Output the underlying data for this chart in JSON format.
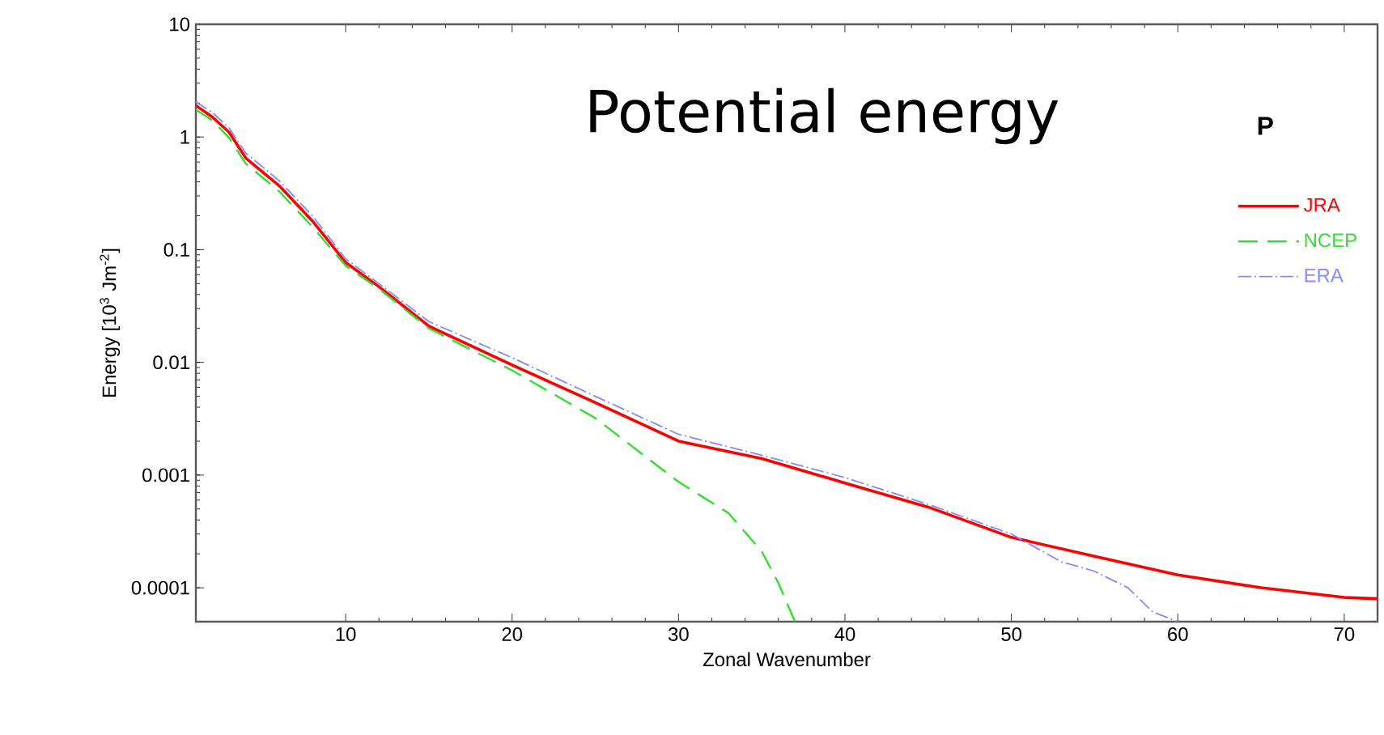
{
  "chart_data": {
    "type": "line",
    "title": "Potential energy",
    "xlabel": "Zonal Wavenumber",
    "ylabel": "Energy [10$^{3}$ Jm$^{-2}$]",
    "annotations": [
      "P"
    ],
    "xlim": [
      1,
      72
    ],
    "ylim": [
      5e-05,
      10
    ],
    "xticks": [
      10,
      20,
      30,
      40,
      50,
      60,
      70
    ],
    "yticks": [
      0.0001,
      0.001,
      0.01,
      0.1,
      1,
      10
    ],
    "log": "y",
    "grid": false,
    "legend": "right",
    "series": [
      {
        "name": "JRA",
        "color": "#ff0000",
        "line_style": "solid",
        "x": [
          1,
          2,
          3,
          4,
          6,
          8,
          10,
          12,
          15,
          20,
          25,
          30,
          35,
          40,
          45,
          50,
          55,
          60,
          65,
          70,
          72
        ],
        "values": [
          1.9,
          1.5,
          1.1,
          0.65,
          0.37,
          0.18,
          0.077,
          0.047,
          0.021,
          0.0095,
          0.0044,
          0.002,
          0.0014,
          0.00085,
          0.00052,
          0.00028,
          0.00019,
          0.00013,
          0.0001,
          8.2e-05,
          8e-05
        ]
      },
      {
        "name": "NCEP",
        "color": "#33dd33",
        "line_style": "dashed",
        "x": [
          1,
          2,
          3,
          4,
          6,
          8,
          10,
          12,
          15,
          20,
          25,
          30,
          33,
          35,
          36,
          37
        ],
        "values": [
          1.75,
          1.4,
          0.98,
          0.58,
          0.33,
          0.16,
          0.072,
          0.045,
          0.02,
          0.0085,
          0.0032,
          0.00087,
          0.00046,
          0.00021,
          0.00011,
          5e-05
        ]
      },
      {
        "name": "ERA",
        "color": "#8888ff",
        "line_style": "dashdot",
        "x": [
          1,
          2,
          3,
          4,
          6,
          8,
          10,
          12,
          15,
          20,
          25,
          30,
          35,
          40,
          45,
          50,
          53,
          55,
          57,
          58.5,
          60
        ],
        "values": [
          2.05,
          1.65,
          1.2,
          0.72,
          0.41,
          0.2,
          0.083,
          0.05,
          0.023,
          0.011,
          0.005,
          0.0023,
          0.0015,
          0.00095,
          0.00055,
          0.0003,
          0.00017,
          0.00014,
          0.0001,
          6.1e-05,
          5e-05
        ]
      }
    ]
  }
}
